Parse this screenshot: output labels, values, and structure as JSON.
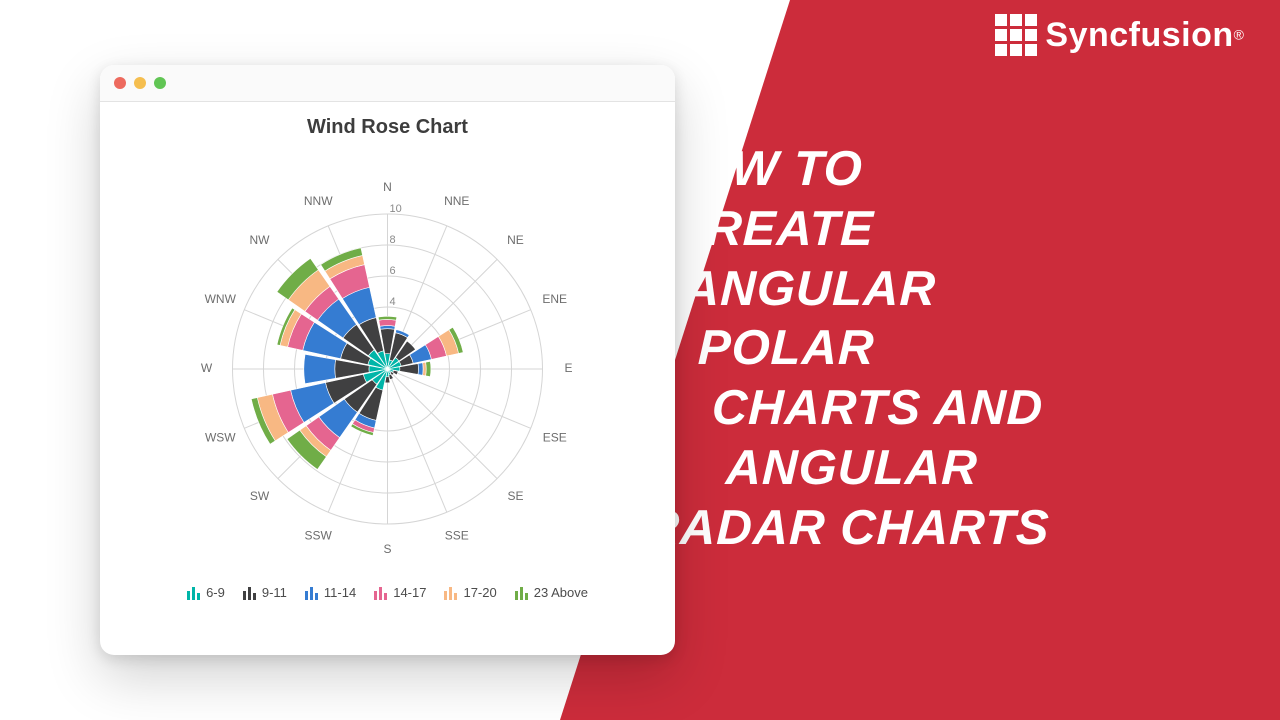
{
  "background_color": "#cc2c3b",
  "logo": {
    "text": "Syncfusion",
    "registered": "®",
    "grid_color": "#ffffff"
  },
  "big_title_lines": [
    "HOW TO",
    "CREATE",
    "ANGULAR",
    "POLAR",
    "CHARTS AND",
    "ANGULAR",
    "RADAR CHARTS"
  ],
  "big_title": {
    "color": "#ffffff",
    "fontsize": 49
  },
  "window": {
    "traffic_colors": [
      "#ed6a5e",
      "#f5be4f",
      "#61c554"
    ],
    "titlebar_bg": "#fafafa",
    "shadow": "0 22px 55px rgba(0,0,0,.18)"
  },
  "chart": {
    "type": "wind-rose-polar-stacked-bar",
    "title": "Wind Rose Chart",
    "title_fontsize": 20,
    "title_color": "#3d3d3d",
    "background_color": "#ffffff",
    "grid_color": "#d5d5d5",
    "axis_label_color": "#6d6d6d",
    "axis_label_fontsize": 12,
    "tick_label_color": "#8a8a8a",
    "tick_label_fontsize": 11,
    "rmax": 10,
    "rticks": [
      4,
      6,
      8,
      10
    ],
    "directions": [
      "N",
      "NNE",
      "NE",
      "ENE",
      "E",
      "ESE",
      "SE",
      "SSE",
      "S",
      "SSW",
      "SW",
      "WSW",
      "W",
      "WNW",
      "NW",
      "NNW"
    ],
    "series": [
      {
        "name": "6-9",
        "color": "#00B5A8"
      },
      {
        "name": "9-11",
        "color": "#404041"
      },
      {
        "name": "11-14",
        "color": "#357CD2"
      },
      {
        "name": "14-17",
        "color": "#E56590"
      },
      {
        "name": "17-20",
        "color": "#F8B883"
      },
      {
        "name": "23 Above",
        "color": "#70AD47"
      }
    ],
    "series_comment": "values[i][j] = contribution of series i at direction j; bars stack radially; directions start at N (top) and go clockwise",
    "values": [
      [
        1.0,
        0.6,
        0.9,
        0.9,
        0.8,
        0.4,
        0.3,
        0.4,
        0.5,
        1.4,
        1.2,
        1.6,
        1.2,
        1.3,
        1.5,
        1.2
      ],
      [
        1.6,
        1.8,
        1.3,
        0.8,
        1.2,
        0.3,
        0.2,
        0.3,
        0.4,
        2.0,
        2.2,
        2.5,
        2.2,
        1.8,
        2.0,
        2.2
      ],
      [
        0.2,
        0.2,
        0.0,
        1.2,
        0.3,
        0.0,
        0.0,
        0.0,
        0.0,
        0.5,
        2.0,
        2.3,
        2.0,
        2.5,
        2.0,
        2.0
      ],
      [
        0.4,
        0.0,
        0.0,
        1.0,
        0.0,
        0.0,
        0.0,
        0.0,
        0.0,
        0.3,
        1.0,
        1.2,
        0.0,
        1.0,
        1.0,
        1.5
      ],
      [
        0.0,
        0.0,
        0.0,
        0.8,
        0.2,
        0.0,
        0.0,
        0.0,
        0.0,
        0.0,
        0.5,
        1.0,
        0.0,
        0.5,
        1.3,
        0.6
      ],
      [
        0.2,
        0.0,
        0.0,
        0.3,
        0.3,
        0.0,
        0.0,
        0.0,
        0.0,
        0.2,
        1.0,
        0.4,
        0.0,
        0.2,
        0.9,
        0.5
      ]
    ],
    "bar_angular_width_ratio": 0.9
  }
}
